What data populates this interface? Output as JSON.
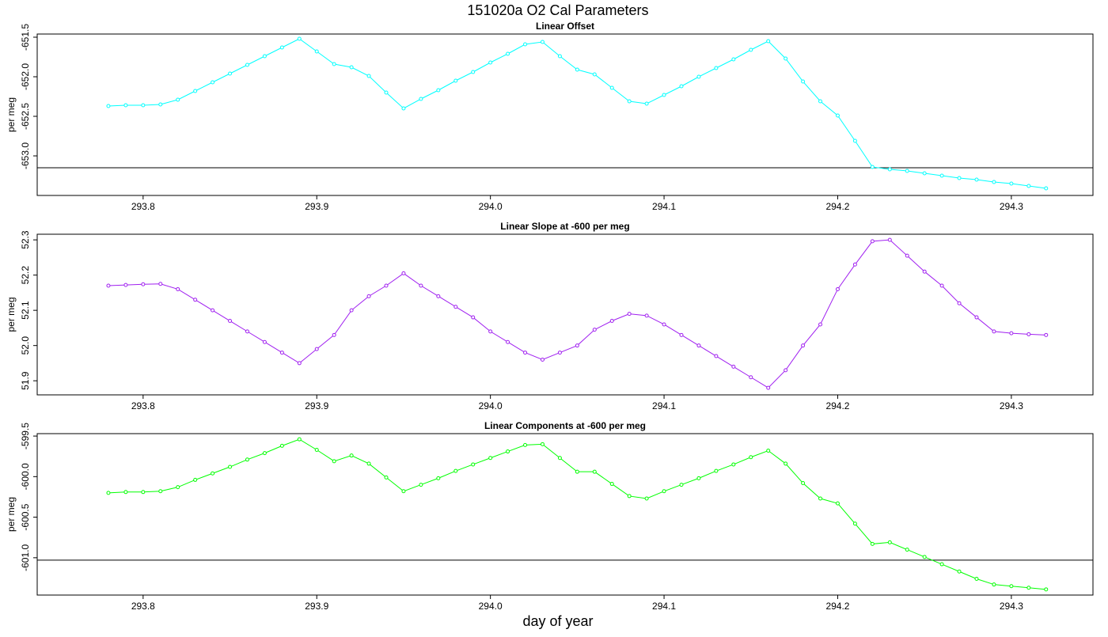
{
  "title": "151020a   O2 Cal Parameters",
  "xlabel": "day of year",
  "chart_data": [
    {
      "type": "line",
      "title": "Linear Offset",
      "ylabel": "per meg",
      "color": "#00ffff",
      "x": [
        293.78,
        293.79,
        293.8,
        293.81,
        293.82,
        293.83,
        293.84,
        293.85,
        293.86,
        293.87,
        293.88,
        293.89,
        293.9,
        293.91,
        293.92,
        293.93,
        293.94,
        293.95,
        293.96,
        293.97,
        293.98,
        293.99,
        294.0,
        294.01,
        294.02,
        294.03,
        294.04,
        294.05,
        294.06,
        294.07,
        294.08,
        294.09,
        294.1,
        294.11,
        294.12,
        294.13,
        294.14,
        294.15,
        294.16,
        294.17,
        294.18,
        294.19,
        294.2,
        294.21,
        294.22,
        294.23,
        294.24,
        294.25,
        294.26,
        294.27,
        294.28,
        294.29,
        294.3,
        294.31,
        294.32
      ],
      "values": [
        -652.37,
        -652.36,
        -652.36,
        -652.35,
        -652.29,
        -652.18,
        -652.07,
        -651.96,
        -651.85,
        -651.74,
        -651.63,
        -651.52,
        -651.68,
        -651.84,
        -651.88,
        -651.99,
        -652.2,
        -652.4,
        -652.28,
        -652.17,
        -652.05,
        -651.94,
        -651.82,
        -651.71,
        -651.59,
        -651.56,
        -651.74,
        -651.91,
        -651.97,
        -652.14,
        -652.31,
        -652.34,
        -652.23,
        -652.12,
        -652.0,
        -651.89,
        -651.78,
        -651.66,
        -651.55,
        -651.77,
        -652.06,
        -652.31,
        -652.49,
        -652.81,
        -653.14,
        -653.17,
        -653.19,
        -653.22,
        -653.25,
        -653.28,
        -653.3,
        -653.33,
        -653.35,
        -653.38,
        -653.41
      ],
      "xlim": [
        293.739,
        294.347
      ],
      "xticks": [
        293.8,
        293.9,
        {
          "value": 294.0,
          "label": "294.0"
        },
        294.1,
        294.2,
        294.3
      ],
      "ylim": [
        -653.5,
        -651.46
      ],
      "yticks": [
        -651.5,
        {
          "value": -652,
          "label": "-652.0"
        },
        -652.5,
        {
          "value": -653,
          "label": "-653.0"
        }
      ],
      "reference_line": -653.15
    },
    {
      "type": "line",
      "title": "Linear Slope at -600 per meg",
      "ylabel": "per meg",
      "color": "#a020f0",
      "x": [
        293.78,
        293.79,
        293.8,
        293.81,
        293.82,
        293.83,
        293.84,
        293.85,
        293.86,
        293.87,
        293.88,
        293.89,
        293.9,
        293.91,
        293.92,
        293.93,
        293.94,
        293.95,
        293.96,
        293.97,
        293.98,
        293.99,
        294.0,
        294.01,
        294.02,
        294.03,
        294.04,
        294.05,
        294.06,
        294.07,
        294.08,
        294.09,
        294.1,
        294.11,
        294.12,
        294.13,
        294.14,
        294.15,
        294.16,
        294.17,
        294.18,
        294.19,
        294.2,
        294.21,
        294.22,
        294.23,
        294.24,
        294.25,
        294.26,
        294.27,
        294.28,
        294.29,
        294.3,
        294.31,
        294.32
      ],
      "values": [
        52.17,
        52.172,
        52.174,
        52.175,
        52.16,
        52.13,
        52.1,
        52.07,
        52.04,
        52.01,
        51.98,
        51.95,
        51.99,
        52.03,
        52.1,
        52.14,
        52.17,
        52.205,
        52.17,
        52.14,
        52.11,
        52.08,
        52.04,
        52.01,
        51.98,
        51.96,
        51.98,
        52.0,
        52.045,
        52.07,
        52.09,
        52.085,
        52.06,
        52.03,
        52.0,
        51.97,
        51.94,
        51.91,
        51.88,
        51.93,
        52.0,
        52.06,
        52.16,
        52.23,
        52.296,
        52.3,
        52.255,
        52.21,
        52.17,
        52.12,
        52.08,
        52.04,
        52.035,
        52.032,
        52.03
      ],
      "xlim": [
        293.739,
        294.347
      ],
      "xticks": [
        293.8,
        293.9,
        {
          "value": 294.0,
          "label": "294.0"
        },
        294.1,
        294.2,
        294.3
      ],
      "ylim": [
        51.86,
        52.316
      ],
      "yticks": [
        51.9,
        {
          "value": 52,
          "label": "52.0"
        },
        52.1,
        52.2,
        52.3
      ]
    },
    {
      "type": "line",
      "title": "Linear Components at -600 per meg",
      "ylabel": "per meg",
      "color": "#00ff00",
      "x": [
        293.78,
        293.79,
        293.8,
        293.81,
        293.82,
        293.83,
        293.84,
        293.85,
        293.86,
        293.87,
        293.88,
        293.89,
        293.9,
        293.91,
        293.92,
        293.93,
        293.94,
        293.95,
        293.96,
        293.97,
        293.98,
        293.99,
        294.0,
        294.01,
        294.02,
        294.03,
        294.04,
        294.05,
        294.06,
        294.07,
        294.08,
        294.09,
        294.1,
        294.11,
        294.12,
        294.13,
        294.14,
        294.15,
        294.16,
        294.17,
        294.18,
        294.19,
        294.2,
        294.21,
        294.22,
        294.23,
        294.24,
        294.25,
        294.26,
        294.27,
        294.28,
        294.29,
        294.3,
        294.31,
        294.32
      ],
      "values": [
        -600.2,
        -600.19,
        -600.19,
        -600.18,
        -600.13,
        -600.04,
        -599.96,
        -599.88,
        -599.79,
        -599.71,
        -599.62,
        -599.54,
        -599.67,
        -599.81,
        -599.74,
        -599.84,
        -600.01,
        -600.18,
        -600.1,
        -600.02,
        -599.93,
        -599.85,
        -599.77,
        -599.69,
        -599.61,
        -599.6,
        -599.77,
        -599.94,
        -599.94,
        -600.09,
        -600.24,
        -600.27,
        -600.18,
        -600.1,
        -600.02,
        -599.93,
        -599.85,
        -599.76,
        -599.68,
        -599.84,
        -600.08,
        -600.27,
        -600.33,
        -600.58,
        -600.83,
        -600.81,
        -600.9,
        -600.99,
        -601.08,
        -601.17,
        -601.26,
        -601.33,
        -601.35,
        -601.37,
        -601.39
      ],
      "xlim": [
        293.739,
        294.347
      ],
      "xticks": [
        293.8,
        293.9,
        {
          "value": 294.0,
          "label": "294.0"
        },
        294.1,
        294.2,
        294.3
      ],
      "ylim": [
        -601.46,
        -599.47
      ],
      "yticks": [
        -599.5,
        {
          "value": -600,
          "label": "-600.0"
        },
        -600.5,
        {
          "value": -601,
          "label": "-601.0"
        }
      ],
      "reference_line": -601.03
    }
  ]
}
